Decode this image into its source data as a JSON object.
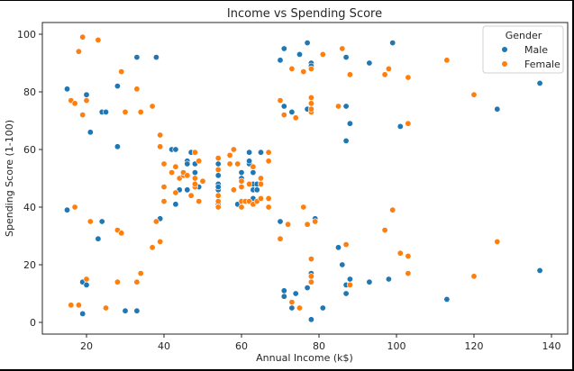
{
  "chart_data": {
    "type": "scatter",
    "title": "Income vs Spending Score",
    "xlabel": "Annual Income (k$)",
    "ylabel": "Spending Score (1-100)",
    "xlim": [
      10,
      143
    ],
    "ylim": [
      -4,
      104
    ],
    "xticks": [
      20,
      40,
      60,
      80,
      100,
      120,
      140
    ],
    "yticks": [
      0,
      20,
      40,
      60,
      80,
      100
    ],
    "grid": false,
    "legend": {
      "title": "Gender",
      "position": "upper right",
      "entries": [
        "Male",
        "Female"
      ]
    },
    "colors": {
      "Male": "#1f77b4",
      "Female": "#ff7f0e"
    },
    "series": [
      {
        "name": "Male",
        "points": [
          [
            15,
            39
          ],
          [
            15,
            81
          ],
          [
            19,
            3
          ],
          [
            19,
            14
          ],
          [
            20,
            13
          ],
          [
            20,
            79
          ],
          [
            21,
            66
          ],
          [
            23,
            29
          ],
          [
            24,
            35
          ],
          [
            24,
            73
          ],
          [
            25,
            73
          ],
          [
            28,
            82
          ],
          [
            28,
            61
          ],
          [
            30,
            4
          ],
          [
            33,
            4
          ],
          [
            33,
            92
          ],
          [
            38,
            92
          ],
          [
            39,
            36
          ],
          [
            42,
            60
          ],
          [
            43,
            60
          ],
          [
            43,
            41
          ],
          [
            44,
            46
          ],
          [
            46,
            46
          ],
          [
            46,
            56
          ],
          [
            46,
            55
          ],
          [
            47,
            59
          ],
          [
            48,
            55
          ],
          [
            48,
            52
          ],
          [
            49,
            47
          ],
          [
            54,
            41
          ],
          [
            54,
            46
          ],
          [
            54,
            48
          ],
          [
            54,
            51
          ],
          [
            54,
            53
          ],
          [
            54,
            55
          ],
          [
            54,
            47
          ],
          [
            59,
            41
          ],
          [
            60,
            52
          ],
          [
            60,
            50
          ],
          [
            60,
            49
          ],
          [
            61,
            42
          ],
          [
            62,
            59
          ],
          [
            62,
            55
          ],
          [
            62,
            56
          ],
          [
            63,
            43
          ],
          [
            63,
            46
          ],
          [
            63,
            48
          ],
          [
            63,
            52
          ],
          [
            64,
            46
          ],
          [
            64,
            48
          ],
          [
            65,
            59
          ],
          [
            70,
            35
          ],
          [
            71,
            9
          ],
          [
            71,
            11
          ],
          [
            71,
            75
          ],
          [
            70,
            91
          ],
          [
            71,
            95
          ],
          [
            73,
            5
          ],
          [
            73,
            73
          ],
          [
            74,
            10
          ],
          [
            75,
            93
          ],
          [
            77,
            12
          ],
          [
            77,
            74
          ],
          [
            77,
            97
          ],
          [
            78,
            1
          ],
          [
            78,
            17
          ],
          [
            78,
            90
          ],
          [
            78,
            89
          ],
          [
            79,
            36
          ],
          [
            81,
            5
          ],
          [
            85,
            26
          ],
          [
            86,
            20
          ],
          [
            87,
            10
          ],
          [
            87,
            13
          ],
          [
            87,
            63
          ],
          [
            87,
            75
          ],
          [
            87,
            92
          ],
          [
            88,
            15
          ],
          [
            88,
            69
          ],
          [
            93,
            14
          ],
          [
            93,
            90
          ],
          [
            98,
            15
          ],
          [
            99,
            97
          ],
          [
            101,
            68
          ],
          [
            113,
            8
          ],
          [
            126,
            74
          ],
          [
            137,
            18
          ],
          [
            137,
            83
          ]
        ]
      },
      {
        "name": "Female",
        "points": [
          [
            16,
            6
          ],
          [
            16,
            77
          ],
          [
            17,
            40
          ],
          [
            17,
            76
          ],
          [
            18,
            6
          ],
          [
            18,
            94
          ],
          [
            19,
            72
          ],
          [
            19,
            99
          ],
          [
            20,
            15
          ],
          [
            20,
            77
          ],
          [
            21,
            35
          ],
          [
            23,
            98
          ],
          [
            25,
            5
          ],
          [
            28,
            14
          ],
          [
            28,
            32
          ],
          [
            29,
            31
          ],
          [
            29,
            87
          ],
          [
            30,
            73
          ],
          [
            33,
            14
          ],
          [
            33,
            81
          ],
          [
            34,
            17
          ],
          [
            34,
            73
          ],
          [
            37,
            26
          ],
          [
            37,
            75
          ],
          [
            38,
            35
          ],
          [
            39,
            28
          ],
          [
            39,
            61
          ],
          [
            39,
            65
          ],
          [
            40,
            47
          ],
          [
            40,
            42
          ],
          [
            40,
            55
          ],
          [
            42,
            52
          ],
          [
            43,
            45
          ],
          [
            43,
            54
          ],
          [
            44,
            50
          ],
          [
            45,
            51
          ],
          [
            45,
            52
          ],
          [
            46,
            51
          ],
          [
            47,
            44
          ],
          [
            48,
            47
          ],
          [
            48,
            48
          ],
          [
            48,
            50
          ],
          [
            48,
            59
          ],
          [
            49,
            42
          ],
          [
            49,
            56
          ],
          [
            50,
            49
          ],
          [
            54,
            40
          ],
          [
            54,
            42
          ],
          [
            54,
            44
          ],
          [
            54,
            53
          ],
          [
            54,
            57
          ],
          [
            57,
            58
          ],
          [
            57,
            55
          ],
          [
            58,
            46
          ],
          [
            58,
            60
          ],
          [
            59,
            55
          ],
          [
            60,
            40
          ],
          [
            60,
            42
          ],
          [
            60,
            47
          ],
          [
            60,
            49
          ],
          [
            61,
            42
          ],
          [
            62,
            42
          ],
          [
            62,
            48
          ],
          [
            63,
            41
          ],
          [
            63,
            54
          ],
          [
            64,
            42
          ],
          [
            65,
            43
          ],
          [
            65,
            48
          ],
          [
            65,
            50
          ],
          [
            67,
            40
          ],
          [
            67,
            43
          ],
          [
            67,
            56
          ],
          [
            67,
            59
          ],
          [
            70,
            29
          ],
          [
            70,
            77
          ],
          [
            71,
            72
          ],
          [
            72,
            34
          ],
          [
            73,
            7
          ],
          [
            73,
            88
          ],
          [
            74,
            71
          ],
          [
            75,
            5
          ],
          [
            76,
            40
          ],
          [
            76,
            87
          ],
          [
            77,
            34
          ],
          [
            78,
            14
          ],
          [
            78,
            16
          ],
          [
            78,
            22
          ],
          [
            78,
            73
          ],
          [
            78,
            74
          ],
          [
            78,
            76
          ],
          [
            78,
            78
          ],
          [
            78,
            88
          ],
          [
            79,
            35
          ],
          [
            81,
            93
          ],
          [
            85,
            75
          ],
          [
            86,
            95
          ],
          [
            87,
            27
          ],
          [
            88,
            13
          ],
          [
            88,
            86
          ],
          [
            97,
            32
          ],
          [
            97,
            86
          ],
          [
            98,
            88
          ],
          [
            99,
            39
          ],
          [
            101,
            24
          ],
          [
            103,
            17
          ],
          [
            103,
            23
          ],
          [
            103,
            69
          ],
          [
            103,
            85
          ],
          [
            113,
            91
          ],
          [
            120,
            16
          ],
          [
            120,
            79
          ],
          [
            126,
            28
          ]
        ]
      }
    ]
  }
}
